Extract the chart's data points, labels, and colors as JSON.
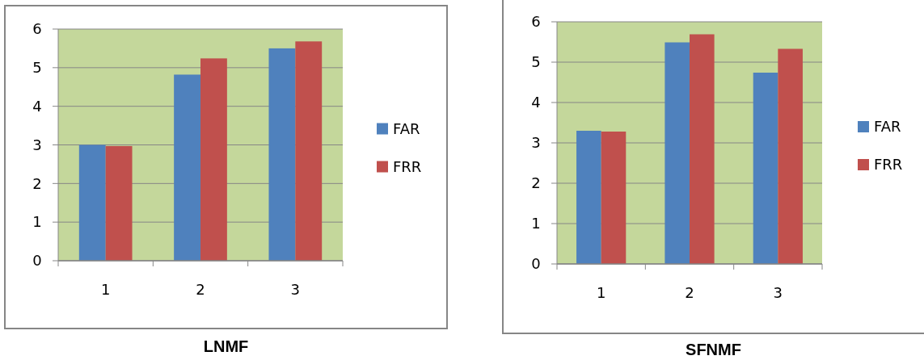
{
  "chart_data": [
    {
      "type": "bar",
      "title": "LNMF",
      "categories": [
        "1",
        "2",
        "3"
      ],
      "series": [
        {
          "name": "FAR",
          "color": "#4f81bd",
          "values": [
            3.0,
            4.82,
            5.5
          ]
        },
        {
          "name": "FRR",
          "color": "#c0504d",
          "values": [
            2.97,
            5.24,
            5.68
          ]
        }
      ],
      "ylim": [
        0,
        6
      ],
      "yticks": [
        0,
        1,
        2,
        3,
        4,
        5,
        6
      ],
      "grid": "y",
      "legend": "right"
    },
    {
      "type": "bar",
      "title": "SFNMF",
      "categories": [
        "1",
        "2",
        "3"
      ],
      "series": [
        {
          "name": "FAR",
          "color": "#4f81bd",
          "values": [
            3.3,
            5.49,
            4.74
          ]
        },
        {
          "name": "FRR",
          "color": "#c0504d",
          "values": [
            3.28,
            5.69,
            5.33
          ]
        }
      ],
      "ylim": [
        0,
        6
      ],
      "yticks": [
        0,
        1,
        2,
        3,
        4,
        5,
        6
      ],
      "grid": "y",
      "legend": "right"
    }
  ]
}
